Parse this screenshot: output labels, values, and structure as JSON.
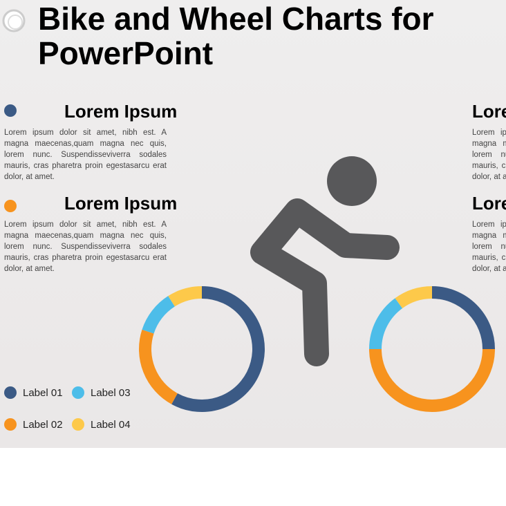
{
  "title": "Bike and Wheel Charts for PowerPoint",
  "sections": [
    {
      "heading": "Lorem Ipsum",
      "text": "Lorem ipsum dolor sit amet, nibh est. A magna maecenas,quam magna nec quis, lorem nunc. Suspendisseviverra sodales mauris, cras pharetra proin egestasarcu erat dolor, at amet."
    },
    {
      "heading": "Lorem Ipsum",
      "text": "Lorem ipsum dolor sit amet, nibh est. A magna maecenas,quam magna nec quis, lorem nunc. Suspendisseviverra sodales mauris, cras pharetra proin egestasarcu erat dolor, at amet."
    },
    {
      "heading": "Lorem Ipsum",
      "text": "Lorem ipsum dolor sit amet, nibh est. A magna maecenas,quam magna nec quis, lorem nunc. Suspendisseviverra sodales mauris, cras pharetra proin egestasarcu erat dolor, at amet."
    },
    {
      "heading": "Lorem Ipsum",
      "text": "Lorem ipsum dolor sit amet, nibh est. A magna maecenas,quam magna nec quis, lorem nunc. Suspendisseviverra sodales mauris, cras pharetra proin egestasarcu erat dolor, at amet."
    }
  ],
  "chart_data": [
    {
      "type": "donut",
      "categories": [
        "Label 01",
        "Label 02",
        "Label 03",
        "Label 04"
      ],
      "values": [
        58,
        22,
        11,
        9
      ],
      "colors": [
        "#3b5a85",
        "#f7931e",
        "#4dbde9",
        "#fdc94a"
      ]
    },
    {
      "type": "donut",
      "categories": [
        "Label 01",
        "Label 02",
        "Label 03",
        "Label 04"
      ],
      "values": [
        25,
        50,
        15,
        10
      ],
      "colors": [
        "#3b5a85",
        "#f7931e",
        "#4dbde9",
        "#fdc94a"
      ]
    }
  ]
}
